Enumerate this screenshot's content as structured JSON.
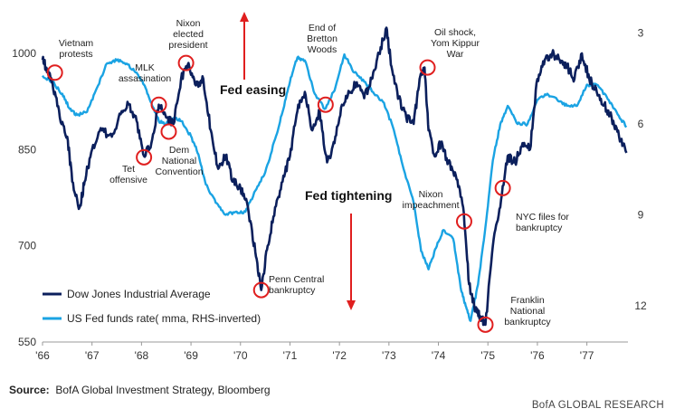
{
  "chart_data": {
    "type": "line",
    "title": "",
    "xlabel": "",
    "x_ticks": [
      "'66",
      "'67",
      "'68",
      "'69",
      "'70",
      "'71",
      "'72",
      "'73",
      "'74",
      "'75",
      "'76",
      "'77"
    ],
    "x_range": [
      1966.0,
      1977.83
    ],
    "y_left": {
      "ticks": [
        550,
        700,
        850,
        1000
      ],
      "range": [
        550,
        1055
      ]
    },
    "y_right": {
      "ticks": [
        3,
        6,
        9,
        12
      ],
      "range": [
        2.5,
        13.2
      ],
      "inverted": true
    },
    "grid": false,
    "legend_placement": "bottom-left",
    "series": [
      {
        "name": "Dow Jones Industrial Average",
        "axis": "left",
        "color": "#0b1f5c",
        "x": [
          1966.0,
          1966.1,
          1966.2,
          1966.35,
          1966.5,
          1966.6,
          1966.75,
          1966.85,
          1967.0,
          1967.2,
          1967.4,
          1967.6,
          1967.75,
          1967.9,
          1968.05,
          1968.2,
          1968.35,
          1968.5,
          1968.65,
          1968.8,
          1968.95,
          1969.1,
          1969.25,
          1969.4,
          1969.55,
          1969.7,
          1969.85,
          1970.0,
          1970.15,
          1970.3,
          1970.42,
          1970.55,
          1970.7,
          1970.85,
          1971.0,
          1971.15,
          1971.3,
          1971.45,
          1971.6,
          1971.75,
          1971.9,
          1972.05,
          1972.2,
          1972.35,
          1972.5,
          1972.65,
          1972.8,
          1972.95,
          1973.05,
          1973.2,
          1973.35,
          1973.5,
          1973.62,
          1973.72,
          1973.8,
          1973.92,
          1974.05,
          1974.2,
          1974.35,
          1974.5,
          1974.62,
          1974.75,
          1974.85,
          1974.95,
          1975.1,
          1975.25,
          1975.4,
          1975.55,
          1975.7,
          1975.85,
          1976.0,
          1976.15,
          1976.3,
          1976.45,
          1976.6,
          1976.75,
          1976.9,
          1977.05,
          1977.2,
          1977.35,
          1977.5,
          1977.65,
          1977.8
        ],
        "values": [
          990,
          975,
          955,
          900,
          870,
          800,
          760,
          800,
          850,
          880,
          870,
          910,
          920,
          895,
          840,
          860,
          920,
          900,
          890,
          960,
          985,
          950,
          960,
          880,
          820,
          840,
          800,
          790,
          760,
          690,
          631,
          700,
          760,
          800,
          840,
          910,
          940,
          880,
          910,
          830,
          860,
          920,
          940,
          955,
          930,
          960,
          1000,
          1040,
          980,
          930,
          900,
          890,
          960,
          978,
          880,
          840,
          860,
          830,
          810,
          760,
          640,
          600,
          590,
          577,
          700,
          760,
          840,
          830,
          860,
          850,
          960,
          990,
          1000,
          990,
          980,
          960,
          1000,
          960,
          940,
          920,
          900,
          870,
          845
        ]
      },
      {
        "name": "US Fed funds rate( mma, RHS-inverted)",
        "axis": "right",
        "color": "#1aa3e3",
        "x": [
          1966.0,
          1966.2,
          1966.4,
          1966.55,
          1966.7,
          1966.9,
          1967.1,
          1967.3,
          1967.5,
          1967.7,
          1967.9,
          1968.05,
          1968.2,
          1968.35,
          1968.5,
          1968.65,
          1968.8,
          1969.0,
          1969.15,
          1969.3,
          1969.5,
          1969.7,
          1969.9,
          1970.1,
          1970.3,
          1970.5,
          1970.7,
          1970.85,
          1971.0,
          1971.15,
          1971.3,
          1971.5,
          1971.7,
          1971.9,
          1972.1,
          1972.3,
          1972.5,
          1972.7,
          1972.9,
          1973.1,
          1973.3,
          1973.5,
          1973.65,
          1973.8,
          1973.95,
          1974.1,
          1974.3,
          1974.45,
          1974.55,
          1974.65,
          1974.8,
          1974.95,
          1975.1,
          1975.25,
          1975.4,
          1975.6,
          1975.8,
          1976.0,
          1976.2,
          1976.4,
          1976.6,
          1976.8,
          1977.0,
          1977.2,
          1977.4,
          1977.6,
          1977.8
        ],
        "values": [
          4.4,
          4.6,
          5.0,
          5.5,
          5.7,
          5.6,
          4.8,
          4.0,
          3.9,
          4.0,
          4.3,
          4.7,
          5.3,
          5.9,
          6.0,
          5.8,
          5.9,
          6.4,
          7.0,
          8.0,
          8.6,
          9.0,
          8.9,
          8.9,
          8.2,
          7.6,
          6.5,
          5.6,
          4.6,
          3.8,
          3.9,
          5.0,
          5.5,
          4.9,
          3.7,
          4.3,
          4.6,
          5.0,
          5.3,
          6.2,
          7.5,
          8.6,
          10.2,
          10.8,
          10.1,
          9.5,
          9.8,
          11.4,
          12.0,
          12.5,
          11.3,
          9.4,
          7.2,
          6.0,
          5.4,
          6.0,
          6.0,
          5.2,
          5.0,
          5.2,
          5.4,
          5.4,
          4.7,
          4.7,
          5.1,
          5.6,
          6.1
        ]
      }
    ],
    "annotations": [
      {
        "id": "vietnam",
        "lines": [
          "Vietnam",
          "protests"
        ],
        "x": 1966.25,
        "y": 970
      },
      {
        "id": "mlk",
        "lines": [
          "MLK",
          "assasination"
        ],
        "x": 1968.35,
        "y": 920
      },
      {
        "id": "nixon-elected",
        "lines": [
          "Nixon",
          "elected",
          "president"
        ],
        "x": 1968.9,
        "y": 985
      },
      {
        "id": "tet",
        "lines": [
          "Tet",
          "offensive"
        ],
        "x": 1968.05,
        "y": 838
      },
      {
        "id": "dem-convention",
        "lines": [
          "Dem",
          "National",
          "Convention"
        ],
        "x": 1968.55,
        "y": 878
      },
      {
        "id": "penn-central",
        "lines": [
          "Penn Central",
          "bankruptcy"
        ],
        "x": 1970.42,
        "y": 631
      },
      {
        "id": "bretton-woods",
        "lines": [
          "End of",
          "Bretton",
          "Woods"
        ],
        "x": 1971.72,
        "y": 920
      },
      {
        "id": "oil-shock",
        "lines": [
          "Oil shock,",
          "Yom Kippur",
          "War"
        ],
        "x": 1973.78,
        "y": 978
      },
      {
        "id": "nixon-impeachment",
        "lines": [
          "Nixon",
          "impeachment"
        ],
        "x": 1974.52,
        "y": 738
      },
      {
        "id": "nyc",
        "lines": [
          "NYC files for",
          "bankruptcy"
        ],
        "x": 1975.3,
        "y": 790
      },
      {
        "id": "franklin",
        "lines": [
          "Franklin",
          "National",
          "bankruptcy"
        ],
        "x": 1974.95,
        "y": 577
      }
    ],
    "callouts": [
      {
        "id": "fed-easing",
        "text": "Fed easing",
        "direction": "up",
        "color": "#e01f1f"
      },
      {
        "id": "fed-tightening",
        "text": "Fed tightening",
        "direction": "down",
        "color": "#e01f1f"
      }
    ]
  },
  "footer": {
    "source_label": "Source:",
    "source_text": "BofA Global Investment Strategy, Bloomberg",
    "brand": "BofA GLOBAL RESEARCH"
  }
}
